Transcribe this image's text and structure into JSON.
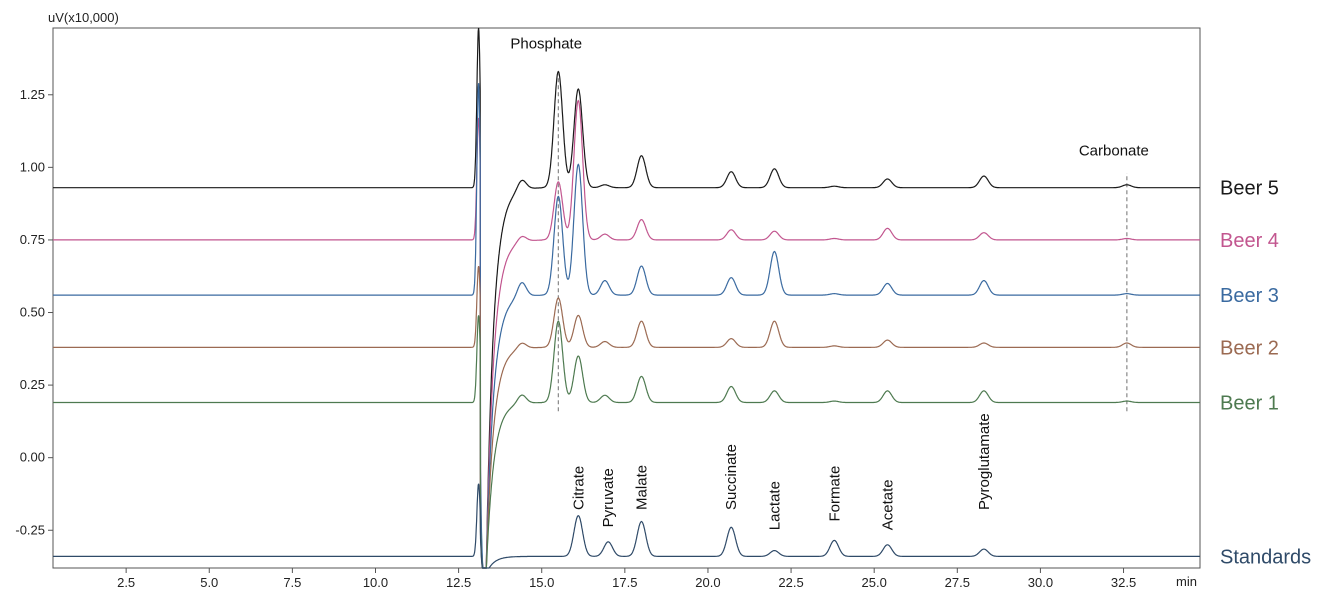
{
  "chart_data": {
    "type": "line",
    "title": "",
    "xlabel": "min",
    "ylabel": "uV(x10,000)",
    "xlim": [
      0.3,
      34.8
    ],
    "ylim": [
      -0.38,
      1.48
    ],
    "x_ticks": [
      2.5,
      5.0,
      7.5,
      10.0,
      12.5,
      15.0,
      17.5,
      20.0,
      22.5,
      25.0,
      27.5,
      30.0,
      32.5
    ],
    "y_ticks": [
      -0.25,
      0.0,
      0.25,
      0.5,
      0.75,
      1.0,
      1.25
    ],
    "y_tick_labels": [
      "-0.25",
      "0.00",
      "0.25",
      "0.50",
      "0.75",
      "1.00",
      "1.25"
    ],
    "x_tick_labels": [
      "2.5",
      "5.0",
      "7.5",
      "10.0",
      "12.5",
      "15.0",
      "17.5",
      "20.0",
      "22.5",
      "25.0",
      "27.5",
      "30.0",
      "32.5"
    ],
    "grid": false,
    "series": [
      {
        "name": "Beer 5",
        "color": "#1a1a1a",
        "baseline": 0.93,
        "peaks": [
          [
            13.1,
            0.55
          ],
          [
            14.4,
            0.035
          ],
          [
            15.5,
            0.4
          ],
          [
            16.1,
            0.34
          ],
          [
            16.9,
            0.01
          ],
          [
            18.0,
            0.11
          ],
          [
            20.7,
            0.055
          ],
          [
            22.0,
            0.065
          ],
          [
            23.8,
            0.005
          ],
          [
            25.4,
            0.03
          ],
          [
            28.3,
            0.04
          ],
          [
            32.6,
            0.01
          ]
        ]
      },
      {
        "name": "Beer 4",
        "color": "#c2568f",
        "baseline": 0.75,
        "peaks": [
          [
            13.1,
            0.42
          ],
          [
            14.4,
            0.02
          ],
          [
            15.5,
            0.2
          ],
          [
            16.1,
            0.48
          ],
          [
            16.9,
            0.02
          ],
          [
            18.0,
            0.07
          ],
          [
            20.7,
            0.035
          ],
          [
            22.0,
            0.03
          ],
          [
            23.8,
            0.005
          ],
          [
            25.4,
            0.04
          ],
          [
            28.3,
            0.025
          ],
          [
            32.6,
            0.005
          ]
        ]
      },
      {
        "name": "Beer 3",
        "color": "#3a6aa0",
        "baseline": 0.56,
        "peaks": [
          [
            13.1,
            0.73
          ],
          [
            14.4,
            0.05
          ],
          [
            15.5,
            0.34
          ],
          [
            16.1,
            0.45
          ],
          [
            16.9,
            0.05
          ],
          [
            18.0,
            0.1
          ],
          [
            20.7,
            0.06
          ],
          [
            22.0,
            0.15
          ],
          [
            23.8,
            0.005
          ],
          [
            25.4,
            0.04
          ],
          [
            28.3,
            0.05
          ],
          [
            32.6,
            0.005
          ]
        ]
      },
      {
        "name": "Beer 2",
        "color": "#9b6a52",
        "baseline": 0.38,
        "peaks": [
          [
            13.1,
            0.28
          ],
          [
            14.4,
            0.02
          ],
          [
            15.5,
            0.17
          ],
          [
            16.1,
            0.11
          ],
          [
            16.9,
            0.02
          ],
          [
            18.0,
            0.09
          ],
          [
            20.7,
            0.03
          ],
          [
            22.0,
            0.09
          ],
          [
            23.8,
            0.005
          ],
          [
            25.4,
            0.025
          ],
          [
            28.3,
            0.015
          ],
          [
            32.6,
            0.015
          ]
        ]
      },
      {
        "name": "Beer 1",
        "color": "#4e7a50",
        "baseline": 0.19,
        "peaks": [
          [
            13.1,
            0.3
          ],
          [
            14.4,
            0.03
          ],
          [
            15.5,
            0.28
          ],
          [
            16.1,
            0.16
          ],
          [
            16.9,
            0.025
          ],
          [
            18.0,
            0.09
          ],
          [
            20.7,
            0.055
          ],
          [
            22.0,
            0.04
          ],
          [
            23.8,
            0.005
          ],
          [
            25.4,
            0.04
          ],
          [
            28.3,
            0.04
          ],
          [
            32.6,
            0.005
          ]
        ]
      },
      {
        "name": "Standards",
        "color": "#2f4a68",
        "baseline": -0.34,
        "peaks": [
          [
            13.1,
            0.25
          ],
          [
            16.1,
            0.14
          ],
          [
            17.0,
            0.05
          ],
          [
            18.0,
            0.12
          ],
          [
            20.7,
            0.1
          ],
          [
            22.0,
            0.02
          ],
          [
            23.8,
            0.055
          ],
          [
            25.4,
            0.04
          ],
          [
            28.3,
            0.025
          ]
        ]
      }
    ],
    "peak_labels": [
      {
        "text": "Phosphate",
        "x": 15.5,
        "y": 1.41,
        "rotated": false
      },
      {
        "text": "Carbonate",
        "x": 32.6,
        "y": 1.04,
        "rotated": false
      },
      {
        "text": "Citrate",
        "x": 16.1,
        "y": -0.18,
        "rotated": true
      },
      {
        "text": "Pyruvate",
        "x": 17.0,
        "y": -0.24,
        "rotated": true
      },
      {
        "text": "Malate",
        "x": 18.0,
        "y": -0.18,
        "rotated": true
      },
      {
        "text": "Succinate",
        "x": 20.7,
        "y": -0.18,
        "rotated": true
      },
      {
        "text": "Lactate",
        "x": 22.0,
        "y": -0.25,
        "rotated": true
      },
      {
        "text": "Formate",
        "x": 23.8,
        "y": -0.22,
        "rotated": true
      },
      {
        "text": "Acetate",
        "x": 25.4,
        "y": -0.25,
        "rotated": true
      },
      {
        "text": "Pyroglutamate",
        "x": 28.3,
        "y": -0.18,
        "rotated": true
      }
    ],
    "marker_lines": [
      {
        "x": 15.5,
        "y_from": 0.16,
        "y_to": 1.32
      },
      {
        "x": 32.6,
        "y_from": 0.16,
        "y_to": 0.98
      }
    ]
  }
}
